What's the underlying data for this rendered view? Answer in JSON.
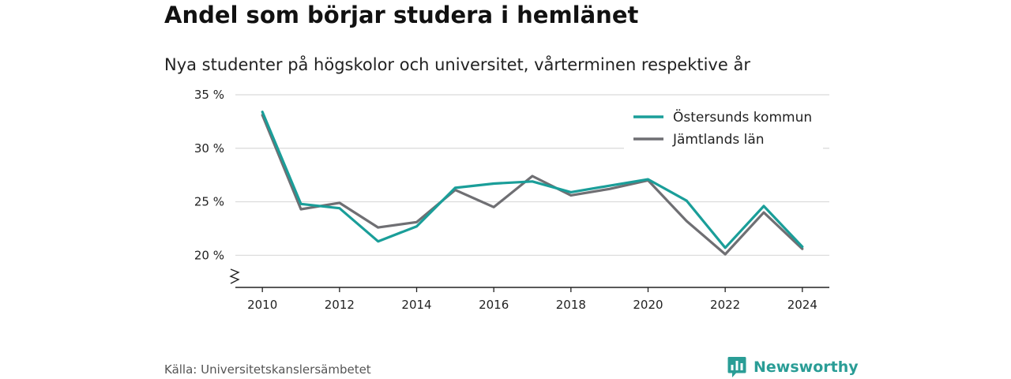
{
  "header": {
    "title": "Andel som börjar studera i hemlänet",
    "subtitle": "Nya studenter på högskolor och universitet, vårterminen respektive år"
  },
  "footer": {
    "source": "Källa: Universitetskanslersämbetet",
    "brand": "Newsworthy"
  },
  "colors": {
    "ostersund": "#1a9e99",
    "jamtland": "#6f6f73",
    "grid": "#d9d9d9",
    "axis": "#222222",
    "brand": "#2a9d96"
  },
  "icons": {
    "brand": "bar-chart-speech-bubble-icon",
    "axis_break": "zigzag-axis-break-icon"
  },
  "chart_data": {
    "type": "line",
    "title": "Andel som börjar studera i hemlänet",
    "subtitle": "Nya studenter på högskolor och universitet, vårterminen respektive år",
    "xlabel": "",
    "ylabel": "",
    "x": [
      2010,
      2011,
      2012,
      2013,
      2014,
      2015,
      2016,
      2017,
      2018,
      2019,
      2020,
      2021,
      2022,
      2023,
      2024
    ],
    "xticks": [
      "2010",
      "2012",
      "2014",
      "2016",
      "2018",
      "2020",
      "2022",
      "2024"
    ],
    "yticks": [
      {
        "value": 20,
        "label": "20 %"
      },
      {
        "value": 25,
        "label": "25 %"
      },
      {
        "value": 30,
        "label": "30 %"
      },
      {
        "value": 35,
        "label": "35 %"
      }
    ],
    "ylim": [
      17,
      35
    ],
    "xlim": [
      2009.3,
      2024.7
    ],
    "grid": true,
    "axis_break": true,
    "legend": "top-right",
    "series": [
      {
        "name": "Östersunds kommun",
        "color": "#1a9e99",
        "values": [
          33.4,
          24.8,
          24.4,
          21.3,
          22.7,
          26.3,
          26.7,
          26.9,
          25.9,
          26.5,
          27.1,
          25.1,
          20.7,
          24.6,
          20.8
        ]
      },
      {
        "name": "Jämtlands län",
        "color": "#6f6f73",
        "values": [
          33.1,
          24.3,
          24.9,
          22.6,
          23.1,
          26.1,
          24.5,
          27.4,
          25.6,
          26.2,
          27.0,
          23.2,
          20.1,
          24.0,
          20.6
        ]
      }
    ]
  }
}
